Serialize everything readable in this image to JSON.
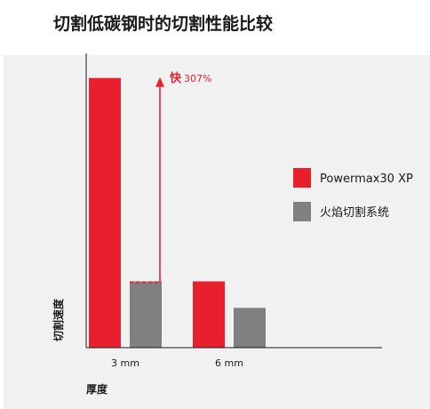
{
  "chart_data": {
    "type": "bar",
    "title": "切割低碳钢时的切割性能比较",
    "xlabel": "厚度",
    "ylabel": "切割速度",
    "categories": [
      "3 mm",
      "6 mm"
    ],
    "series": [
      {
        "name": "Powermax30 XP",
        "color": "#e8202e",
        "values": [
          4.07,
          1.0
        ]
      },
      {
        "name": "火焰切割系统",
        "color": "#808080",
        "values": [
          1.0,
          0.6
        ]
      }
    ],
    "ylim": [
      0,
      4.2
    ],
    "grid": false,
    "legend_position": "right",
    "annotation": {
      "category": "3 mm",
      "strong_text": "快",
      "weak_text": "307%",
      "color": "#e8202e"
    }
  }
}
